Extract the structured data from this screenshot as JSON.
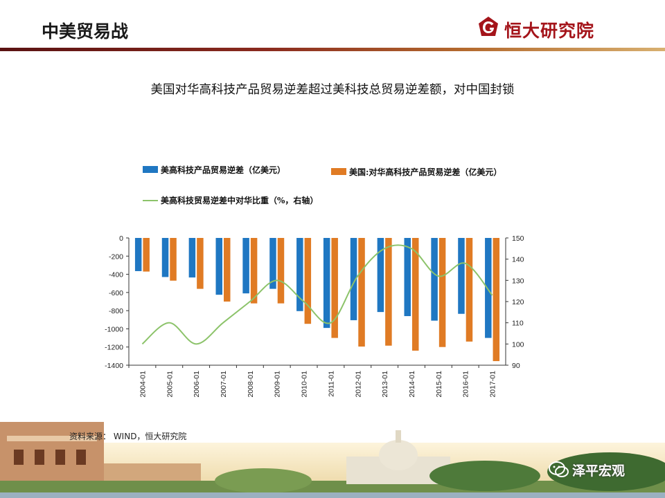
{
  "header": {
    "title": "中美贸易战",
    "brand": "恒大研究院"
  },
  "chart_data": {
    "type": "bar",
    "title": "美国对华高科技产品贸易逆差超过美科技总贸易逆差额，对中国封锁",
    "categories": [
      "2004-01",
      "2005-01",
      "2006-01",
      "2007-01",
      "2008-01",
      "2009-01",
      "2010-01",
      "2011-01",
      "2012-01",
      "2013-01",
      "2014-01",
      "2015-01",
      "2016-01",
      "2017-01"
    ],
    "series": [
      {
        "name": "美高科技产品贸易逆差（亿美元）",
        "type": "bar",
        "axis": "left",
        "color": "#1f77c2",
        "values": [
          -365,
          -430,
          -435,
          -625,
          -610,
          -560,
          -805,
          -990,
          -905,
          -815,
          -860,
          -910,
          -835,
          -1100
        ]
      },
      {
        "name": "美国:对华高科技产品贸易逆差（亿美元）",
        "type": "bar",
        "axis": "left",
        "color": "#e07b24",
        "values": [
          -370,
          -470,
          -560,
          -700,
          -720,
          -720,
          -945,
          -1100,
          -1195,
          -1185,
          -1240,
          -1200,
          -1140,
          -1355
        ]
      },
      {
        "name": "美高科技贸易逆差中对华比重（%，右轴）",
        "type": "line",
        "axis": "right",
        "color": "#8cc36a",
        "values": [
          100,
          110,
          100,
          110,
          120,
          130,
          120,
          110,
          132,
          145,
          145,
          132,
          138,
          123
        ]
      }
    ],
    "left_axis": {
      "min": -1400,
      "max": 0,
      "ticks": [
        0,
        -200,
        -400,
        -600,
        -800,
        -1000,
        -1200,
        -1400
      ]
    },
    "right_axis": {
      "min": 90,
      "max": 150,
      "ticks": [
        150,
        140,
        130,
        120,
        110,
        100,
        90
      ]
    },
    "grid": false,
    "legend_position": "top-left"
  },
  "source": "资料来源： WIND，恒大研究院",
  "watermark": "泽平宏观",
  "colors": {
    "brand_red": "#a4141a",
    "bar_blue": "#1f77c2",
    "bar_orange": "#e07b24",
    "line_green": "#8cc36a"
  }
}
